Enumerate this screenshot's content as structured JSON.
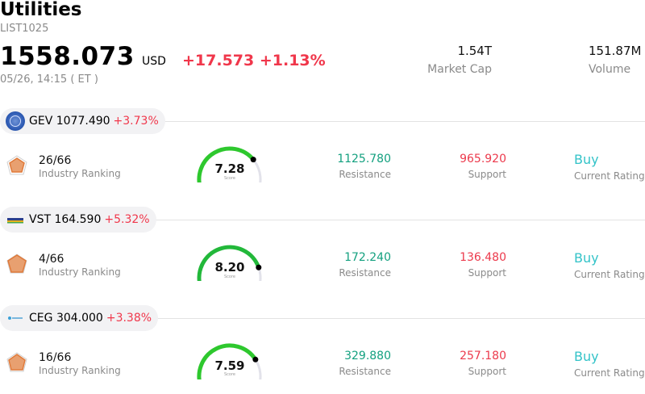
{
  "header": {
    "title": "Utilities",
    "code": "LIST1025",
    "price": "1558.073",
    "currency": "USD",
    "change": "+17.573 +1.13%",
    "time": "05/26, 14:15  ( ET )",
    "market_cap_value": "1.54T",
    "market_cap_label": "Market Cap",
    "volume_value": "151.87M",
    "volume_label": "Volume"
  },
  "colors": {
    "up_red": "#f0374b",
    "resistance_green": "#13a07f",
    "support_red": "#ec3a4c",
    "rating_teal": "#33c3c8",
    "gauge_green": "#32c832"
  },
  "stocks": [
    {
      "ticker": "GEV",
      "price": "1077.490",
      "change": "+3.73%",
      "logo": "ge-vernova-logo",
      "ranking_value": "26/66",
      "ranking_label": "Industry Ranking",
      "score": "7.28",
      "score_label": "Score",
      "score_fraction": 0.728,
      "resistance_value": "1125.780",
      "resistance_label": "Resistance",
      "support_value": "965.920",
      "support_label": "Support",
      "rating_value": "Buy",
      "rating_label": "Current Rating"
    },
    {
      "ticker": "VST",
      "price": "164.590",
      "change": "+5.32%",
      "logo": "vistra-logo",
      "ranking_value": "4/66",
      "ranking_label": "Industry Ranking",
      "score": "8.20",
      "score_label": "Score",
      "score_fraction": 0.82,
      "resistance_value": "172.240",
      "resistance_label": "Resistance",
      "support_value": "136.480",
      "support_label": "Support",
      "rating_value": "Buy",
      "rating_label": "Current Rating"
    },
    {
      "ticker": "CEG",
      "price": "304.000",
      "change": "+3.38%",
      "logo": "constellation-logo",
      "ranking_value": "16/66",
      "ranking_label": "Industry Ranking",
      "score": "7.59",
      "score_label": "Score",
      "score_fraction": 0.759,
      "resistance_value": "329.880",
      "resistance_label": "Resistance",
      "support_value": "257.180",
      "support_label": "Support",
      "rating_value": "Buy",
      "rating_label": "Current Rating"
    }
  ]
}
